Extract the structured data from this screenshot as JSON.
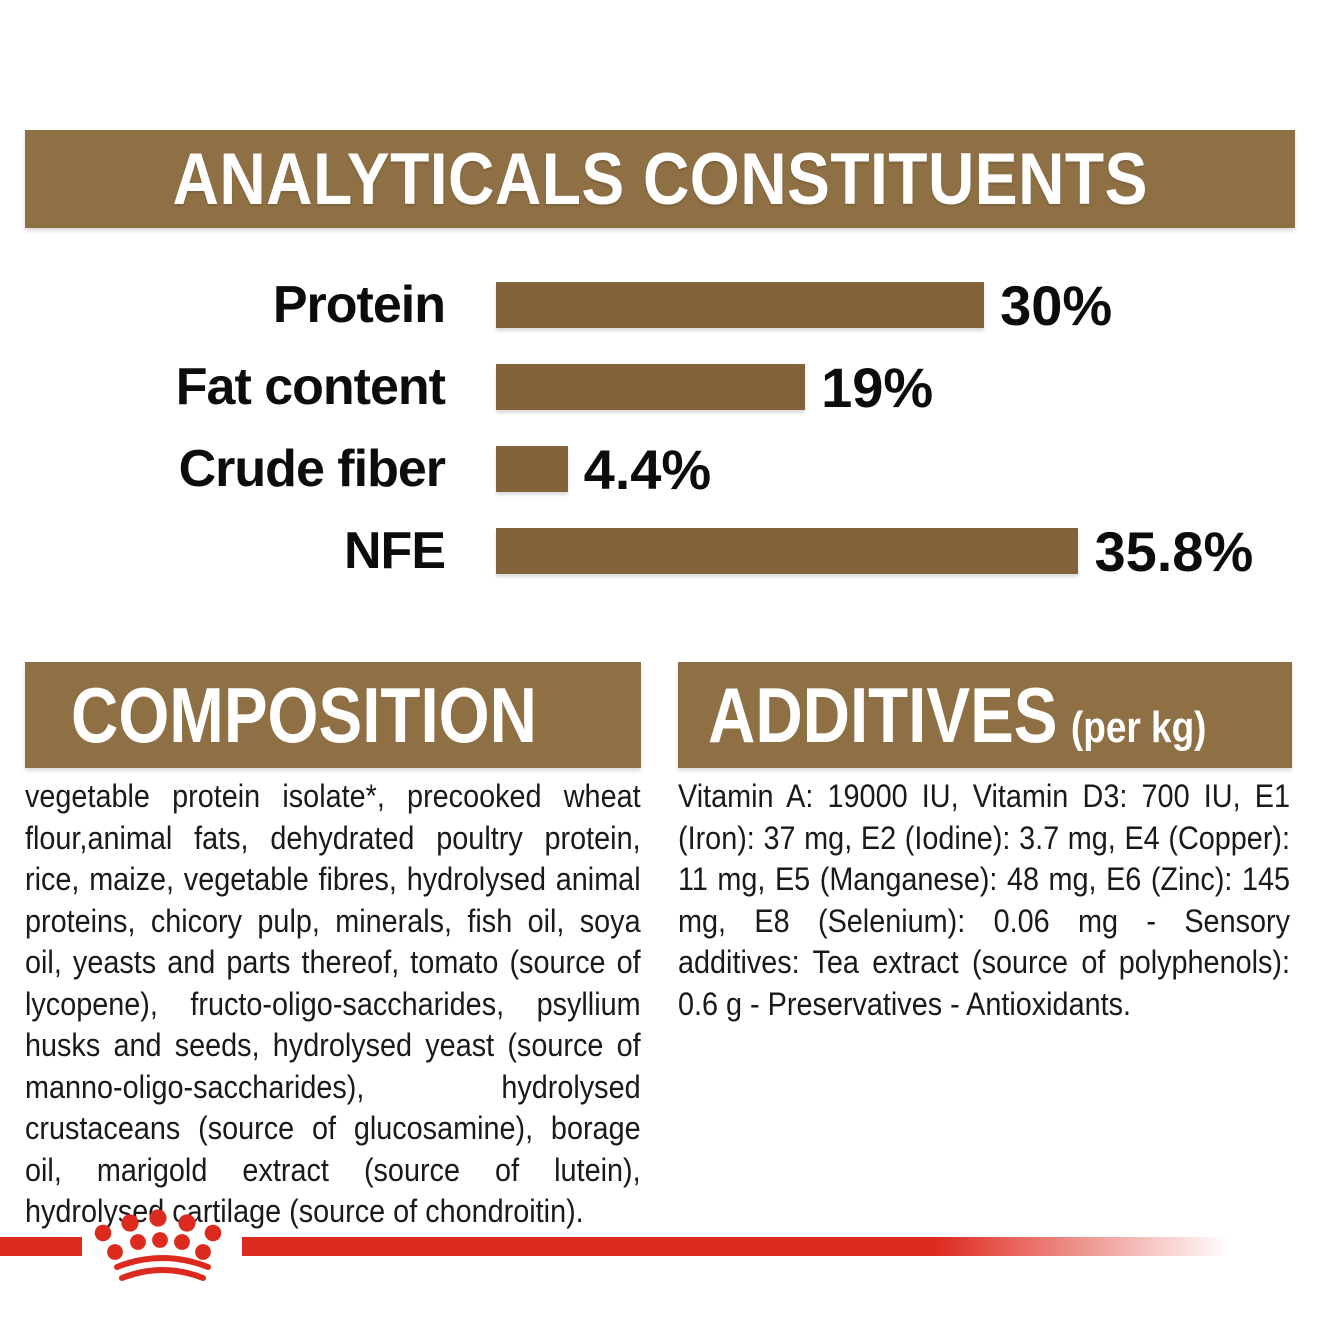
{
  "colors": {
    "banner_brown": "#8F6F44",
    "bar_brown": "#85633A",
    "accent_red": "#DD2A1E",
    "text_black": "#1a1a1a",
    "banner_text_white": "#ffffff"
  },
  "analyticals": {
    "title": "ANALYTICALS CONSTITUENTS",
    "chart_data": {
      "type": "bar",
      "orientation": "horizontal",
      "categories": [
        "Protein",
        "Fat content",
        "Crude fiber",
        "NFE"
      ],
      "values": [
        30,
        19,
        4.4,
        35.8
      ],
      "value_labels": [
        "30%",
        "19%",
        "4.4%",
        "35.8%"
      ],
      "unit": "%",
      "xlim": [
        0,
        36
      ],
      "bar_color": "#85633A",
      "grid": false,
      "legend": false
    }
  },
  "composition": {
    "title": "COMPOSITION",
    "body": "vegetable protein isolate*, precooked wheat flour,animal fats, dehydrated poultry protein, rice, maize, vegetable fibres, hydrolysed animal proteins, chicory pulp, minerals, fish oil, soya oil, yeasts and parts thereof, tomato (source of lycopene), fructo-oligo-saccharides, psyllium husks and seeds, hydrolysed yeast (source of manno-oligo-saccharides), hydrolysed crustaceans (source of glucosamine), borage oil, marigold extract (source of lutein), hydrolysed cartilage (source of chondroitin)."
  },
  "additives": {
    "title": "ADDITIVES",
    "title_suffix": "(per kg)",
    "body": "Vitamin A: 19000 IU, Vitamin D3: 700 IU, E1 (Iron): 37 mg, E2 (Iodine): 3.7 mg, E4 (Copper): 11 mg, E5 (Manganese): 48 mg, E6 (Zinc): 145 mg, E8 (Selenium): 0.06 mg - Sensory additives: Tea extract (source of polyphenols): 0.6 g - Preservatives - Antioxidants."
  },
  "footer": {
    "logo": "royal-canin-crown"
  }
}
